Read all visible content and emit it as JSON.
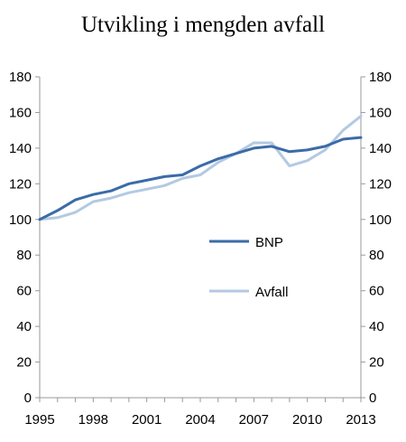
{
  "chart_data": {
    "type": "line",
    "title": "Utvikling i mengden avfall",
    "x": [
      1995,
      1996,
      1997,
      1998,
      1999,
      2000,
      2001,
      2002,
      2003,
      2004,
      2005,
      2006,
      2007,
      2008,
      2009,
      2010,
      2011,
      2012,
      2013
    ],
    "x_ticks": [
      "1995",
      "1998",
      "2001",
      "2004",
      "2007",
      "2010",
      "2013"
    ],
    "y_ticks_left": [
      "0",
      "20",
      "40",
      "60",
      "80",
      "100",
      "120",
      "140",
      "160",
      "180"
    ],
    "y_ticks_right": [
      "0",
      "20",
      "40",
      "60",
      "80",
      "100",
      "120",
      "140",
      "160",
      "180"
    ],
    "ylim": [
      0,
      180
    ],
    "grid": false,
    "legend_position": "center-right",
    "series": [
      {
        "name": "BNP",
        "color": "#3b6ba8",
        "values": [
          100,
          105,
          111,
          114,
          116,
          120,
          122,
          124,
          125,
          130,
          134,
          137,
          140,
          141,
          138,
          139,
          141,
          145,
          146
        ]
      },
      {
        "name": "Avfall",
        "color": "#b3c9e2",
        "values": [
          100,
          101,
          104,
          110,
          112,
          115,
          117,
          119,
          123,
          125,
          132,
          137,
          143,
          143,
          130,
          133,
          139,
          150,
          158
        ]
      }
    ]
  }
}
